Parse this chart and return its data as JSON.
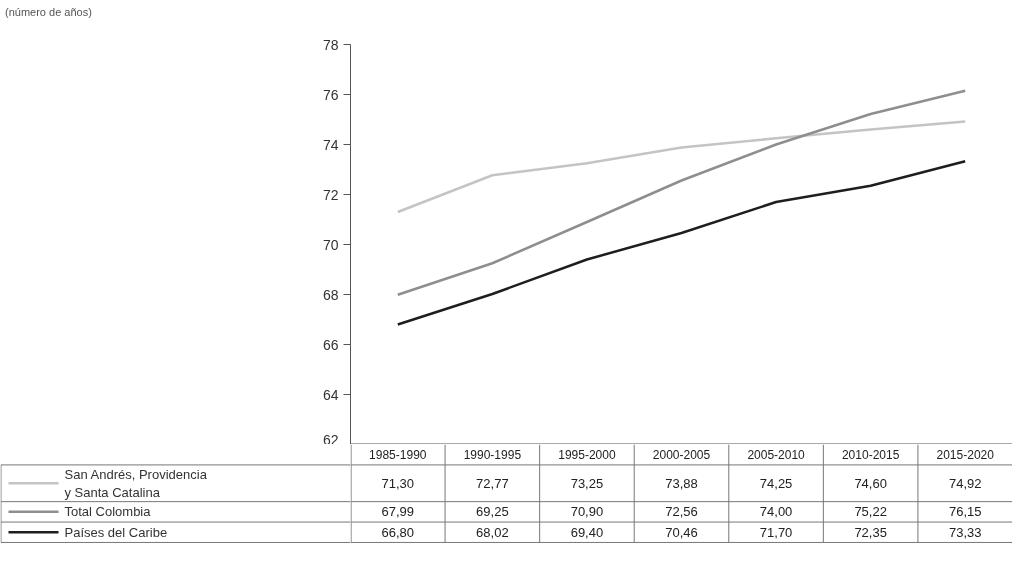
{
  "chart_data": {
    "type": "line",
    "annotations": [
      "(número de años)"
    ],
    "categories": [
      "1985-1990",
      "1990-1995",
      "1995-2000",
      "2000-2005",
      "2005-2010",
      "2010-2015",
      "2015-2020"
    ],
    "ylim": [
      62,
      78
    ],
    "yticks": [
      62,
      64,
      66,
      68,
      70,
      72,
      74,
      76,
      78
    ],
    "grid": false,
    "legend": "bottom",
    "data_labels": true,
    "series": [
      {
        "name": "San Andrés, Providencia y Santa Catalina",
        "color": "#c4c4c4",
        "values": [
          71.3,
          72.77,
          73.25,
          73.88,
          74.25,
          74.6,
          74.92
        ],
        "value_labels": [
          "71,30",
          "72,77",
          "73,25",
          "73,88",
          "74,25",
          "74,60",
          "74,92"
        ]
      },
      {
        "name": "Total Colombia",
        "color": "#8e8e8e",
        "values": [
          67.99,
          69.25,
          70.9,
          72.56,
          74.0,
          75.22,
          76.15
        ],
        "value_labels": [
          "67,99",
          "69,25",
          "70,90",
          "72,56",
          "74,00",
          "75,22",
          "76,15"
        ]
      },
      {
        "name": "Países del Caribe",
        "color": "#1e1e1e",
        "values": [
          66.8,
          68.02,
          69.4,
          70.46,
          71.7,
          72.35,
          73.33
        ],
        "value_labels": [
          "66,80",
          "68,02",
          "69,40",
          "70,46",
          "71,70",
          "72,35",
          "73,33"
        ]
      }
    ]
  }
}
